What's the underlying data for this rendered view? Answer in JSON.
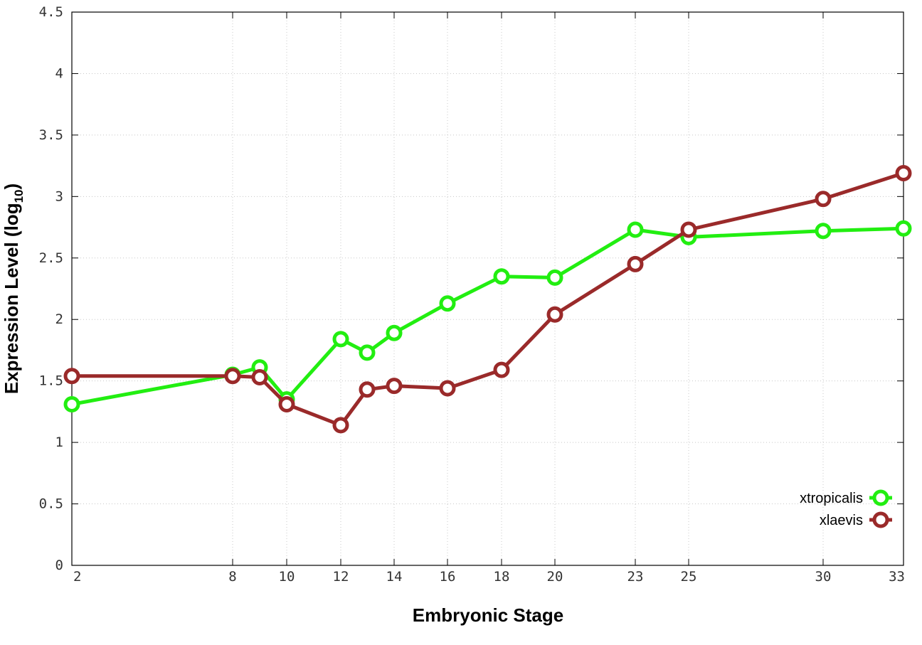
{
  "chart_data": {
    "type": "line",
    "xlabel": "Embryonic Stage",
    "ylabel": "Expression Level (log",
    "ylabel_sub": "10",
    "ylabel_close": ")",
    "x_ticks": [
      2,
      8,
      10,
      12,
      14,
      16,
      18,
      20,
      23,
      25,
      30,
      33
    ],
    "y_ticks": [
      "0",
      "0.5",
      "1",
      "1.5",
      "2",
      "2.5",
      "3",
      "3.5",
      "4",
      "4.5"
    ],
    "ylim": [
      0,
      4.5
    ],
    "grid": true,
    "legend_position": "bottom-right",
    "series": [
      {
        "name": "xtropicalis",
        "color": "#22ee11",
        "x": [
          2,
          8,
          9,
          10,
          12,
          13,
          14,
          16,
          18,
          20,
          23,
          25,
          30,
          33
        ],
        "values": [
          1.31,
          1.55,
          1.61,
          1.35,
          1.84,
          1.73,
          1.89,
          2.13,
          2.35,
          2.34,
          2.73,
          2.67,
          2.72,
          2.74
        ]
      },
      {
        "name": "xlaevis",
        "color": "#9a2a2a",
        "x": [
          2,
          8,
          9,
          10,
          12,
          13,
          14,
          16,
          18,
          20,
          23,
          25,
          30,
          33
        ],
        "values": [
          1.54,
          1.54,
          1.53,
          1.31,
          1.14,
          1.43,
          1.46,
          1.44,
          1.59,
          2.04,
          2.45,
          2.73,
          2.98,
          3.19
        ]
      }
    ]
  }
}
